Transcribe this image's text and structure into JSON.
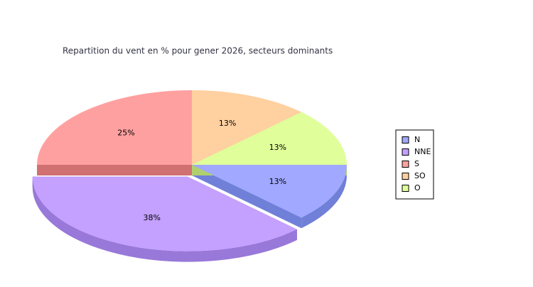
{
  "chart_data": {
    "type": "pie",
    "title": "Repartition du vent en % pour gener 2026, secteurs dominants",
    "categories": [
      "N",
      "NNE",
      "S",
      "SO",
      "O"
    ],
    "values": [
      12.5,
      37.5,
      25,
      12.5,
      12.5
    ],
    "value_labels": [
      "13%",
      "38%",
      "25%",
      "13%",
      "13%"
    ],
    "colors": [
      "#a0a8ff",
      "#c4a0ff",
      "#ffa0a0",
      "#ffd0a0",
      "#e0ff9a"
    ],
    "side_colors": [
      "#7080d8",
      "#9878d8",
      "#d07070",
      "#d0a070",
      "#b0d070"
    ],
    "exploded": [
      false,
      true,
      false,
      false,
      false
    ],
    "legend": "right"
  }
}
